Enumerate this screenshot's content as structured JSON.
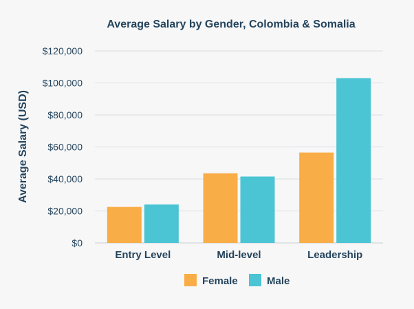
{
  "chart_data": {
    "type": "bar",
    "title": "Average Salary by Gender, Colombia & Somalia",
    "xlabel": "",
    "ylabel": "Average Salary (USD)",
    "categories": [
      "Entry Level",
      "Mid-level",
      "Leadership"
    ],
    "series": [
      {
        "name": "Female",
        "values": [
          22500,
          43500,
          56500
        ],
        "color": "#f9ad47"
      },
      {
        "name": "Male",
        "values": [
          24000,
          41500,
          103000
        ],
        "color": "#4bc4d3"
      }
    ],
    "ylim": [
      0,
      120000
    ],
    "yticks": [
      0,
      20000,
      40000,
      60000,
      80000,
      100000,
      120000
    ],
    "ytick_labels": [
      "$0",
      "$20,000",
      "$40,000",
      "$60,000",
      "$80,000",
      "$100,000",
      "$120,000"
    ],
    "grid": true,
    "legend": "bottom-center"
  }
}
